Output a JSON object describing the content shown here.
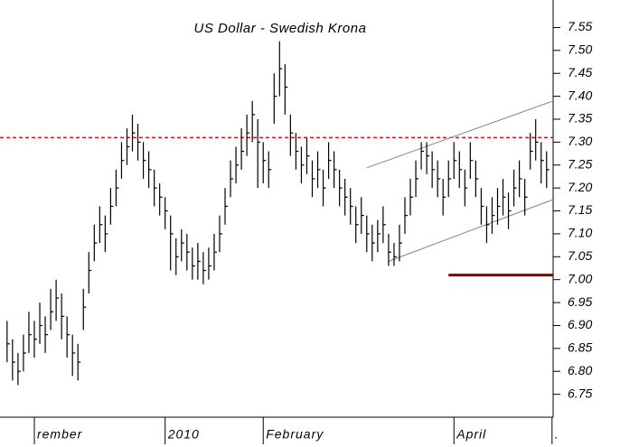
{
  "chart_data": {
    "type": "ohlc",
    "title": "US Dollar - Swedish Krona",
    "color": "#000000",
    "high": [
      6.91,
      6.87,
      6.84,
      6.88,
      6.93,
      6.91,
      6.95,
      6.92,
      6.98,
      7.0,
      6.97,
      6.92,
      6.88,
      6.86,
      6.98,
      7.06,
      7.12,
      7.16,
      7.14,
      7.2,
      7.24,
      7.3,
      7.33,
      7.36,
      7.34,
      7.3,
      7.28,
      7.24,
      7.21,
      7.18,
      7.14,
      7.09,
      7.11,
      7.1,
      7.07,
      7.08,
      7.06,
      7.07,
      7.1,
      7.14,
      7.2,
      7.26,
      7.29,
      7.33,
      7.36,
      7.39,
      7.35,
      7.3,
      7.28,
      7.45,
      7.52,
      7.47,
      7.36,
      7.32,
      7.29,
      7.31,
      7.26,
      7.28,
      7.24,
      7.3,
      7.28,
      7.24,
      7.22,
      7.2,
      7.16,
      7.18,
      7.14,
      7.12,
      7.13,
      7.16,
      7.1,
      7.08,
      7.12,
      7.18,
      7.22,
      7.26,
      7.3,
      7.3,
      7.28,
      7.26,
      7.22,
      7.26,
      7.3,
      7.28,
      7.24,
      7.3,
      7.26,
      7.2,
      7.16,
      7.18,
      7.2,
      7.22,
      7.19,
      7.24,
      7.26,
      7.22,
      7.32,
      7.35,
      7.3,
      7.28
    ],
    "low": [
      6.82,
      6.78,
      6.77,
      6.8,
      6.84,
      6.83,
      6.86,
      6.84,
      6.89,
      6.91,
      6.87,
      6.83,
      6.79,
      6.78,
      6.89,
      6.97,
      7.04,
      7.08,
      7.06,
      7.12,
      7.16,
      7.22,
      7.25,
      7.28,
      7.26,
      7.22,
      7.2,
      7.16,
      7.14,
      7.11,
      7.02,
      7.01,
      7.04,
      7.02,
      7.0,
      7.0,
      6.99,
      7.0,
      7.02,
      7.06,
      7.12,
      7.18,
      7.21,
      7.24,
      7.27,
      7.3,
      7.2,
      7.21,
      7.2,
      7.34,
      7.4,
      7.36,
      7.27,
      7.24,
      7.21,
      7.23,
      7.18,
      7.2,
      7.16,
      7.22,
      7.2,
      7.16,
      7.14,
      7.12,
      7.08,
      7.1,
      7.06,
      7.04,
      7.06,
      7.08,
      7.03,
      7.03,
      7.04,
      7.1,
      7.14,
      7.18,
      7.24,
      7.23,
      7.2,
      7.18,
      7.14,
      7.18,
      7.22,
      7.2,
      7.16,
      7.22,
      7.18,
      7.12,
      7.08,
      7.1,
      7.12,
      7.14,
      7.11,
      7.16,
      7.18,
      7.14,
      7.24,
      7.26,
      7.21,
      7.2
    ],
    "close": [
      6.86,
      6.82,
      6.8,
      6.84,
      6.88,
      6.87,
      6.9,
      6.88,
      6.93,
      6.96,
      6.92,
      6.88,
      6.84,
      6.82,
      6.94,
      7.02,
      7.08,
      7.12,
      7.1,
      7.16,
      7.2,
      7.26,
      7.29,
      7.32,
      7.3,
      7.26,
      7.24,
      7.2,
      7.18,
      7.15,
      7.1,
      7.05,
      7.08,
      7.06,
      7.03,
      7.04,
      7.02,
      7.03,
      7.06,
      7.1,
      7.16,
      7.22,
      7.25,
      7.28,
      7.32,
      7.36,
      7.3,
      7.26,
      7.24,
      7.4,
      7.46,
      7.42,
      7.32,
      7.28,
      7.25,
      7.27,
      7.22,
      7.24,
      7.2,
      7.26,
      7.24,
      7.2,
      7.18,
      7.16,
      7.12,
      7.14,
      7.1,
      7.08,
      7.1,
      7.12,
      7.06,
      7.05,
      7.08,
      7.14,
      7.18,
      7.22,
      7.28,
      7.27,
      7.24,
      7.22,
      7.18,
      7.22,
      7.26,
      7.24,
      7.2,
      7.26,
      7.22,
      7.16,
      7.12,
      7.14,
      7.16,
      7.18,
      7.15,
      7.2,
      7.22,
      7.18,
      7.28,
      7.3,
      7.26,
      7.24
    ],
    "xlim": [
      -1.3,
      100.2
    ],
    "xticks": [
      {
        "value": 5,
        "label": "rember"
      },
      {
        "value": 29,
        "label": "2010"
      },
      {
        "value": 47,
        "label": "February"
      },
      {
        "value": 82,
        "label": "April"
      },
      {
        "value": 100,
        "label": "."
      }
    ],
    "ylim": [
      6.7,
      7.61
    ],
    "yticks": [
      7.55,
      {
        "value": 7.5,
        "label": "7.50"
      },
      7.45,
      {
        "value": 7.4,
        "label": "7.40"
      },
      7.35,
      {
        "value": 7.3,
        "label": "7.30"
      },
      7.25,
      {
        "value": 7.2,
        "label": "7.20"
      },
      7.15,
      {
        "value": 7.1,
        "label": "7.10"
      },
      7.05,
      {
        "value": 7,
        "label": "7.00"
      },
      6.95,
      {
        "value": 6.9,
        "label": "6.90"
      },
      6.85,
      {
        "value": 6.8,
        "label": "6.80"
      },
      6.75
    ],
    "hlines": [
      {
        "value": 7.31,
        "color": "#ff0000",
        "dashed": true
      },
      {
        "value": 7.01,
        "from": 81,
        "color": "#800000",
        "dashed": false
      }
    ],
    "trendlines": [
      {
        "x": [
          66,
          100
        ],
        "y": [
          7.244,
          7.389
        ],
        "color": "#808080"
      },
      {
        "x": [
          70,
          100
        ],
        "y": [
          7.04,
          7.174
        ],
        "color": "#808080"
      }
    ]
  }
}
